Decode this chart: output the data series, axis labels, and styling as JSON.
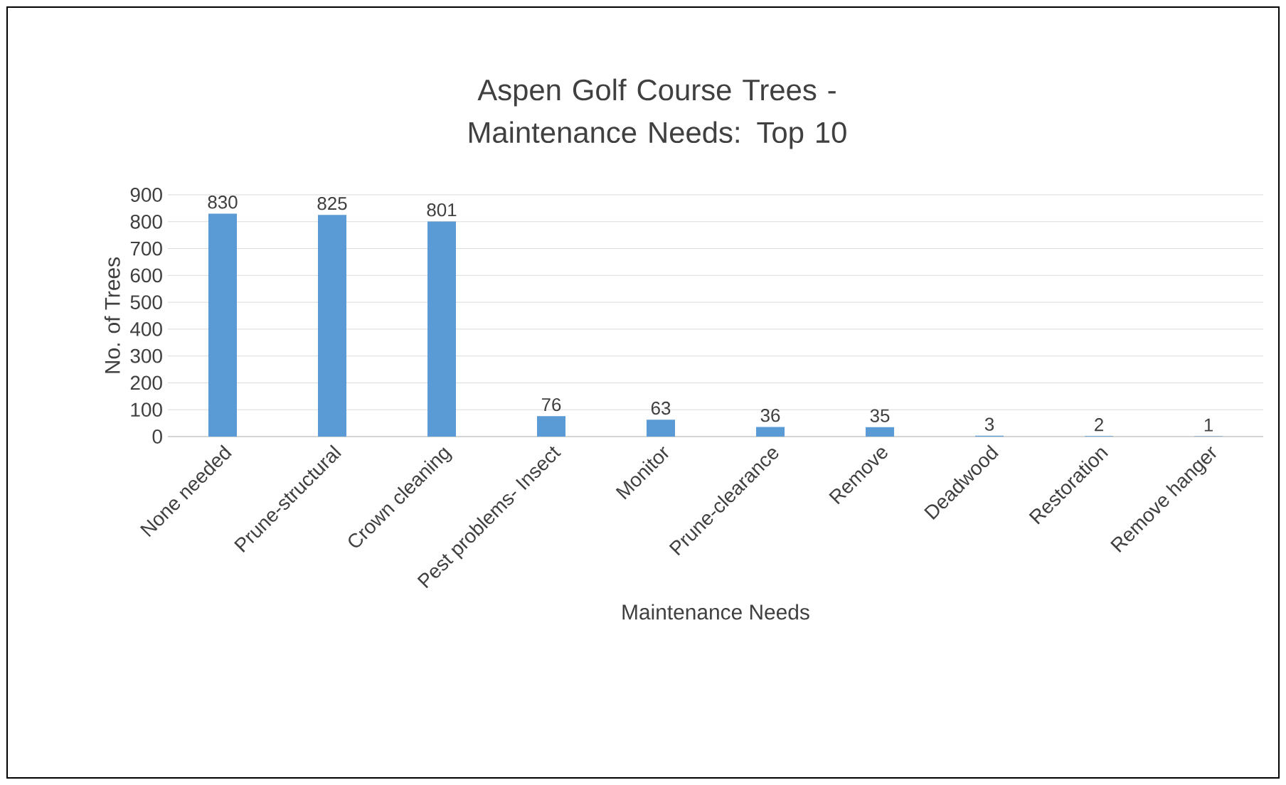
{
  "chart_data": {
    "type": "bar",
    "title": "Aspen Golf Course Trees - Maintenance Needs: Top 10",
    "xlabel": "Maintenance Needs",
    "ylabel": "No. of Trees",
    "categories": [
      "None needed",
      "Prune-structural",
      "Crown cleaning",
      "Pest problems- Insect",
      "Monitor",
      "Prune-clearance",
      "Remove",
      "Deadwood",
      "Restoration",
      "Remove hanger"
    ],
    "values": [
      830,
      825,
      801,
      76,
      63,
      36,
      35,
      3,
      2,
      1
    ],
    "color": "#5b9bd5",
    "ylim": [
      0,
      900
    ],
    "yticks": [
      0,
      100,
      200,
      300,
      400,
      500,
      600,
      700,
      800,
      900
    ],
    "grid": "y",
    "data_labels": true
  }
}
